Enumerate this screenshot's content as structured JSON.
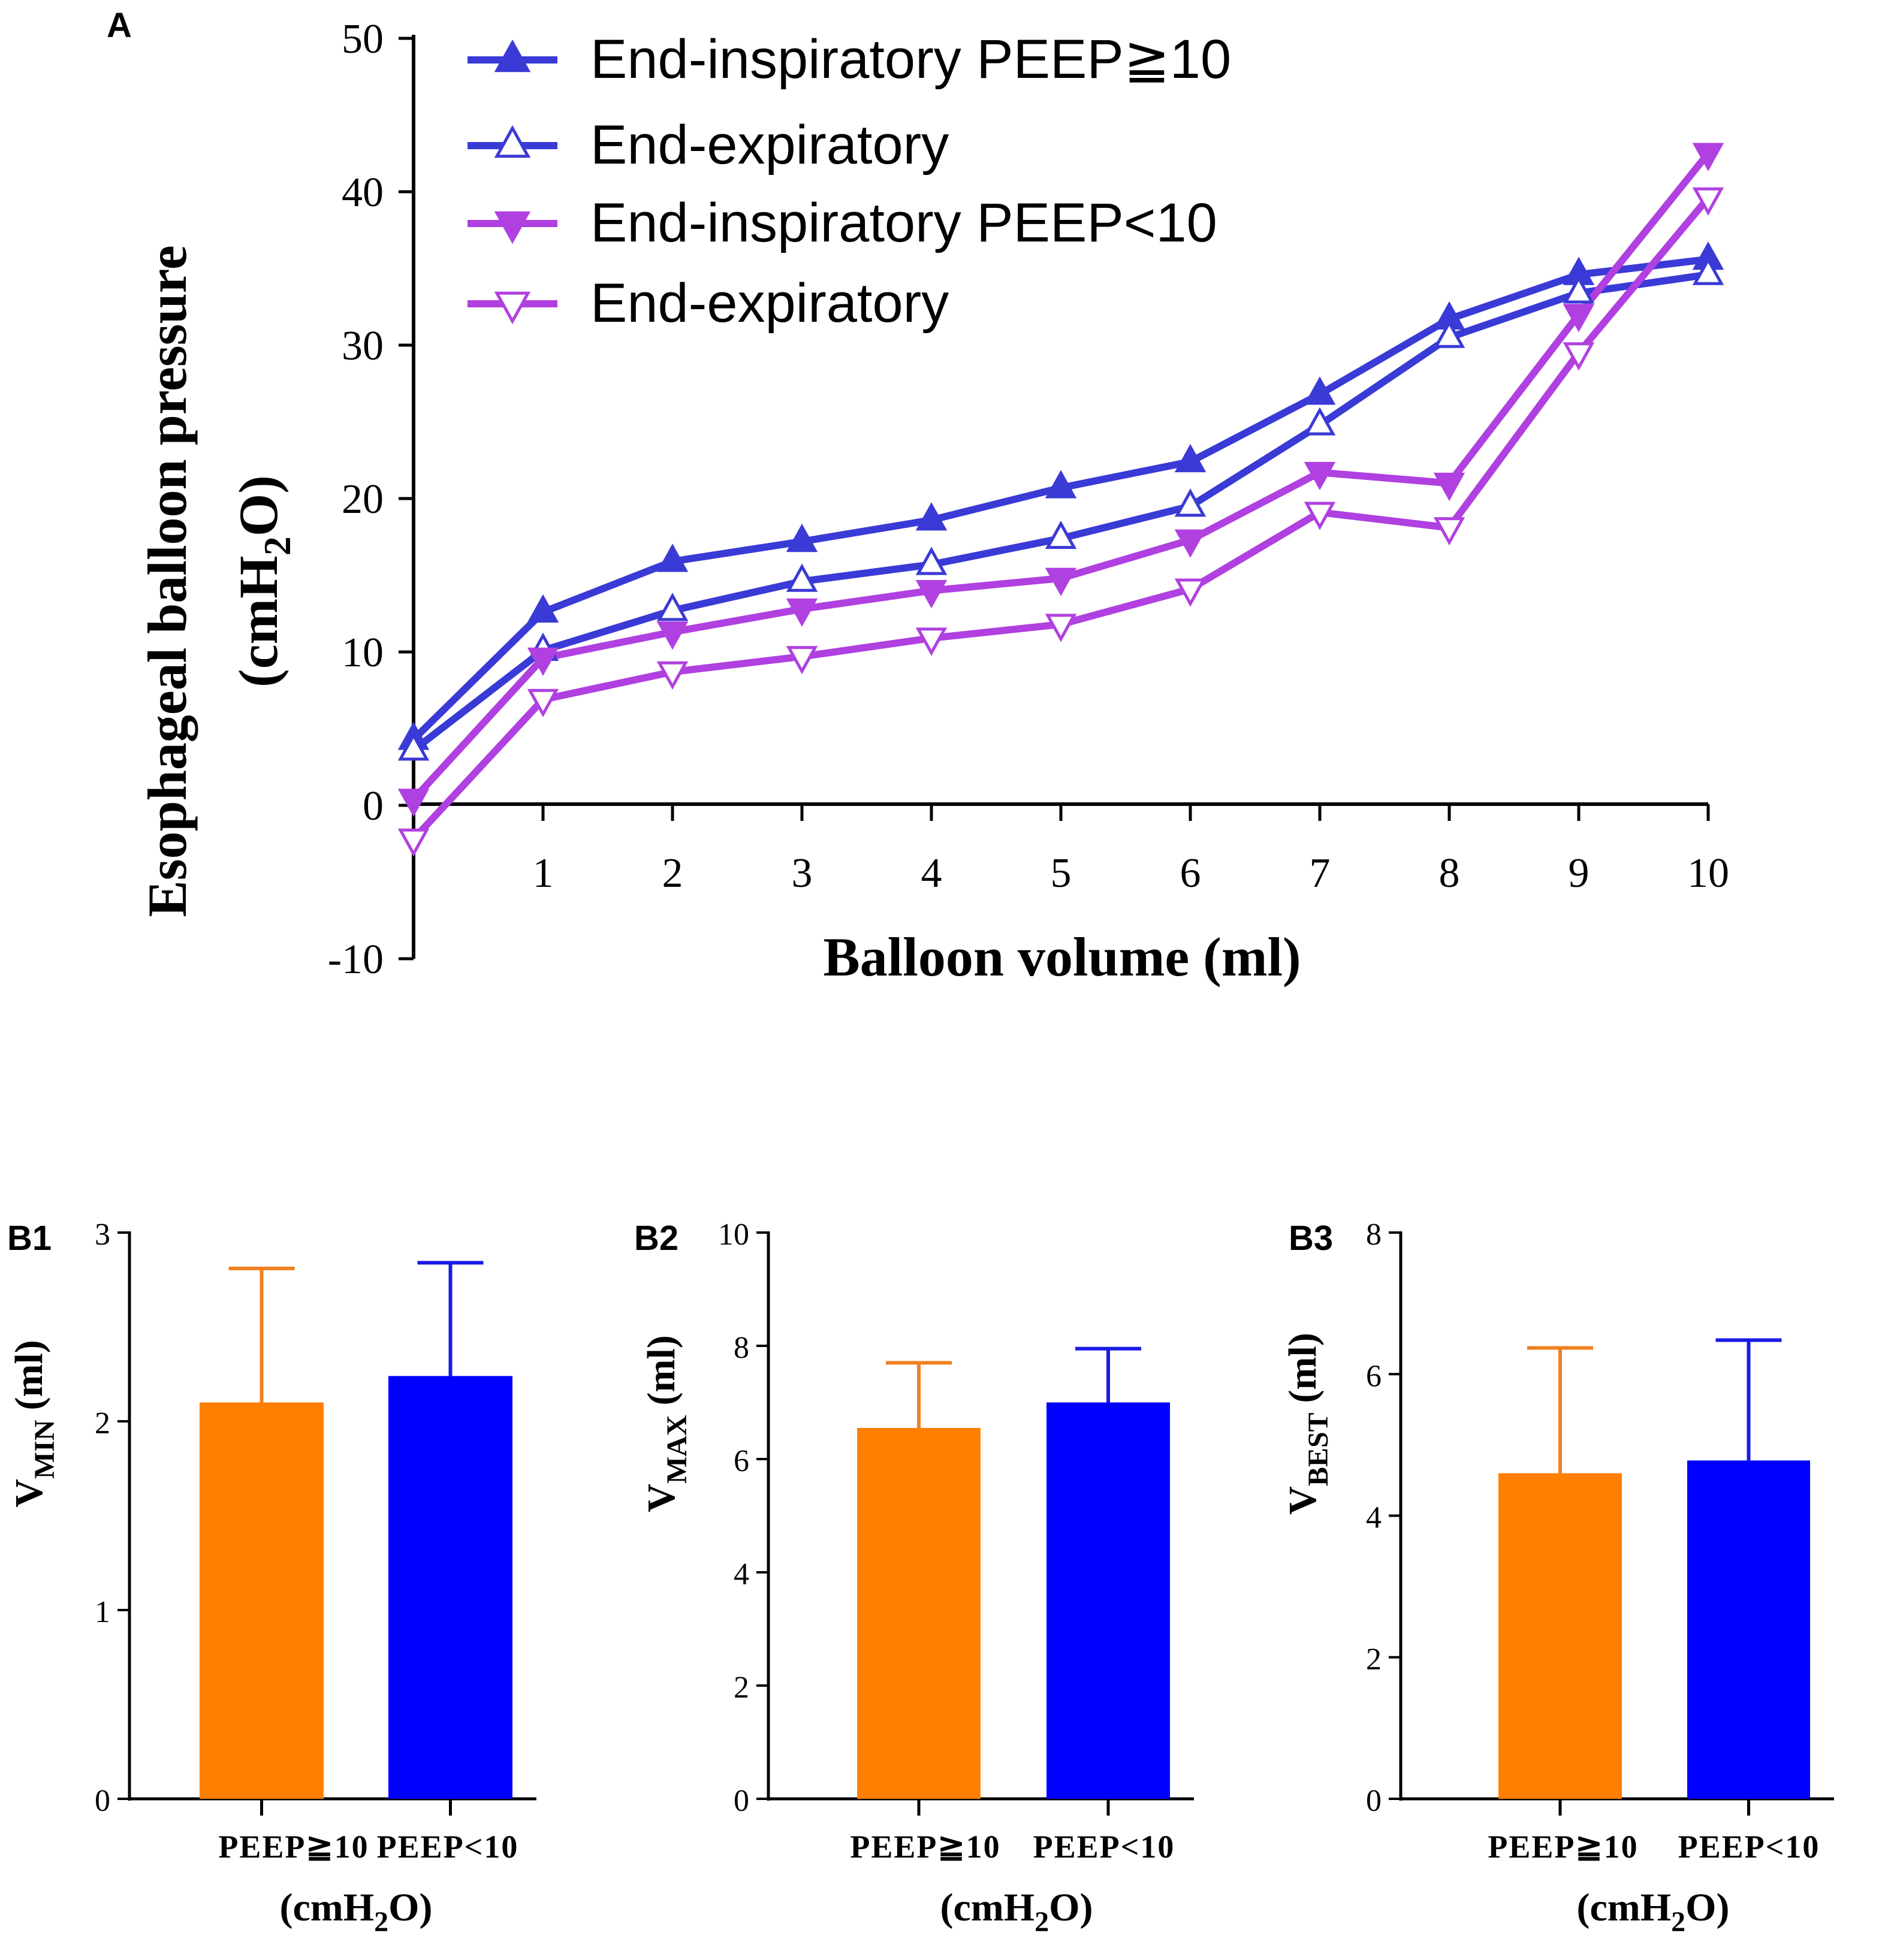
{
  "colors": {
    "blue": "#3a3ad6",
    "magenta": "#b040e0",
    "bar_orange": "#ff7f00",
    "bar_blue": "#0000ff",
    "err_orange": "#f08020",
    "err_blue": "#1a1ae6"
  },
  "chart_data": [
    {
      "type": "line",
      "panel": "A",
      "title": "",
      "xlabel": "Balloon  volume (ml)",
      "ylabel_main": "Esophageal balloon pressure",
      "ylabel_unit": "(cmH",
      "ylabel_unit_sub": "2",
      "ylabel_unit_end": "O)",
      "x": [
        0,
        1,
        2,
        3,
        4,
        5,
        6,
        7,
        8,
        9,
        10
      ],
      "x_ticks": [
        "1",
        "2",
        "3",
        "4",
        "5",
        "6",
        "7",
        "8",
        "9",
        "10"
      ],
      "xlim": [
        0,
        10
      ],
      "ylim": [
        -10,
        50
      ],
      "y_ticks": [
        "-10",
        "0",
        "10",
        "20",
        "30",
        "40",
        "50"
      ],
      "legend_position": "top-left",
      "series": [
        {
          "name": "End-inspiratory PEEP≧10",
          "color": "#3a3ad6",
          "marker": "triangle-up-filled",
          "values": [
            4.3,
            12.6,
            15.9,
            17.2,
            18.6,
            20.7,
            22.4,
            26.8,
            31.7,
            34.6,
            35.6
          ]
        },
        {
          "name": "End-expiratory",
          "color": "#3a3ad6",
          "marker": "triangle-up-open",
          "values": [
            3.6,
            10.1,
            12.7,
            14.6,
            15.7,
            17.4,
            19.5,
            24.8,
            30.5,
            33.4,
            34.6
          ]
        },
        {
          "name": "End-inspiratory PEEP<10",
          "color": "#b040e0",
          "marker": "triangle-down-filled",
          "values": [
            0.4,
            9.6,
            11.3,
            12.8,
            14.0,
            14.8,
            17.3,
            21.7,
            21.0,
            32.0,
            42.5
          ]
        },
        {
          "name": "End-expiratory",
          "color": "#b040e0",
          "marker": "triangle-down-open",
          "values": [
            -2.2,
            6.9,
            8.7,
            9.7,
            10.9,
            11.8,
            14.1,
            19.1,
            18.1,
            29.5,
            39.6
          ]
        }
      ]
    },
    {
      "type": "bar",
      "panel": "B1",
      "ylabel": "V",
      "ylabel_sub": "MIN",
      "ylabel_unit": "(ml)",
      "categories": [
        "PEEP≧10",
        "PEEP<10"
      ],
      "values": [
        2.1,
        2.24
      ],
      "errors": [
        0.71,
        0.6
      ],
      "ylim": [
        0,
        3
      ],
      "y_ticks": [
        "0",
        "1",
        "2",
        "3"
      ],
      "xlabel": "(cmH",
      "xlabel_sub": "2",
      "xlabel_end": "O)"
    },
    {
      "type": "bar",
      "panel": "B2",
      "ylabel": "V",
      "ylabel_sub": "MAX",
      "ylabel_unit": "(ml)",
      "categories": [
        "PEEP≧10",
        "PEEP<10"
      ],
      "values": [
        6.55,
        7.0
      ],
      "errors": [
        1.15,
        0.95
      ],
      "ylim": [
        0,
        10
      ],
      "y_ticks": [
        "0",
        "2",
        "4",
        "6",
        "8",
        "10"
      ],
      "xlabel": "(cmH",
      "xlabel_sub": "2",
      "xlabel_end": "O)"
    },
    {
      "type": "bar",
      "panel": "B3",
      "ylabel": "V",
      "ylabel_sub": "BEST",
      "ylabel_unit": "(ml)",
      "categories": [
        "PEEP≧10",
        "PEEP<10"
      ],
      "values": [
        4.6,
        4.78
      ],
      "errors": [
        1.77,
        1.7
      ],
      "ylim": [
        0,
        8
      ],
      "y_ticks": [
        "0",
        "2",
        "4",
        "6",
        "8"
      ],
      "xlabel": "(cmH",
      "xlabel_sub": "2",
      "xlabel_end": "O)"
    }
  ]
}
